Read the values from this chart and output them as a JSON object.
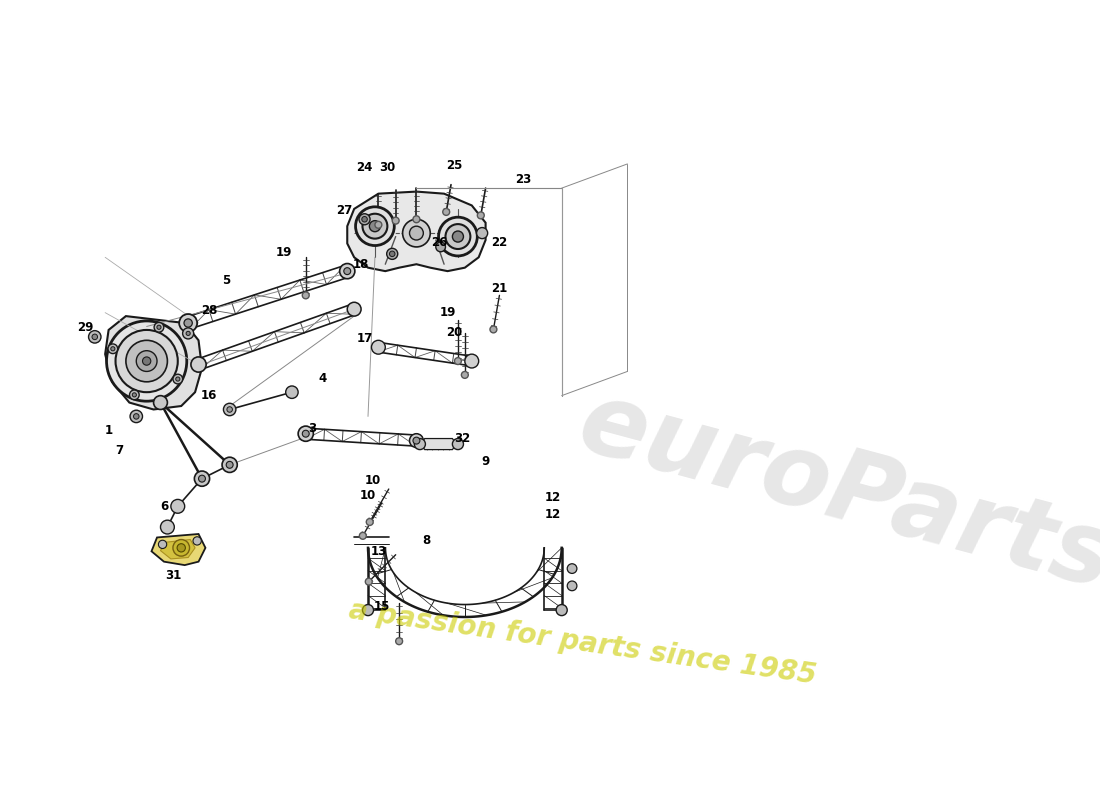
{
  "bg_color": "#ffffff",
  "line_color": "#1a1a1a",
  "fig_width": 11.0,
  "fig_height": 8.0,
  "dpi": 100,
  "wm1": "euroParts",
  "wm2": "a passion for parts since 1985",
  "wm1_color": "#b0b0b0",
  "wm2_color": "#cccc00",
  "annotation_fontsize": 8.5,
  "lw_thick": 1.8,
  "lw_med": 1.2,
  "lw_thin": 0.7
}
